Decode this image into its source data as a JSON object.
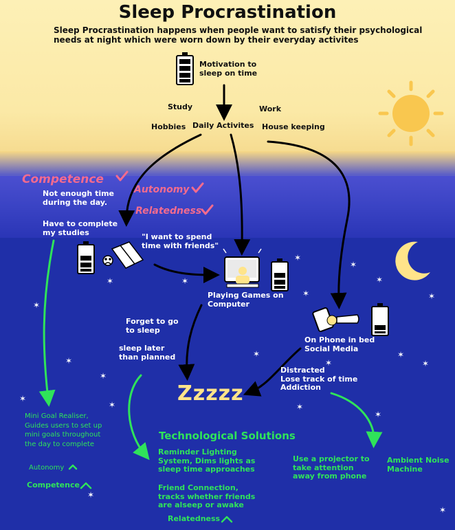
{
  "title": "Sleep Procrastination",
  "subtitle": "Sleep Procrastination happens when people want to satisfy their psychological needs at night which were worn down by their everyday activites",
  "top": {
    "motivation": "Motivation to\nsleep on time",
    "study": "Study",
    "work": "Work",
    "hobbies": "Hobbies",
    "daily": "Daily Activites",
    "housekeeping": "House keeping"
  },
  "needs": {
    "competence": "Competence",
    "autonomy": "Autonomy",
    "relatedness": "Relatedness"
  },
  "notes": {
    "not_enough_time": "Not enough time\nduring the day.",
    "complete_studies": "Have to complete\nmy studies",
    "spend_time": "\"I want to spend\ntime with friends\"",
    "playing_games": "Playing Games on\nComputer",
    "forget_sleep": "Forget to go\nto sleep",
    "sleep_later": "sleep later\nthan planned",
    "on_phone": "On Phone in bed\nSocial Media",
    "distracted": "Distracted\nLose track of time\nAddiction",
    "zzz": "Zzzzz"
  },
  "solutions": {
    "heading": "Technological Solutions",
    "mini_goal": "Mini Goal Realiser,\nGuides users to set up\nmini goals throughout\nthe day to complete",
    "autonomy": "Autonomy",
    "competence": "Competence",
    "reminder": "Reminder Lighting\nSystem, Dims lights as\nsleep time approaches",
    "friend": "Friend Connection,\ntracks whether friends\nare alseep or awake",
    "relatedness": "Relatedness",
    "projector": "Use a projector to\ntake attention\naway from phone",
    "ambient": "Ambient Noise\nMachine"
  },
  "colors": {
    "sky": "#fdf0b6",
    "night": "#1f2fa8",
    "sun": "#f9c74f",
    "moon": "#ffe48a",
    "pink": "#f36b8e",
    "green": "#2fe35a"
  }
}
